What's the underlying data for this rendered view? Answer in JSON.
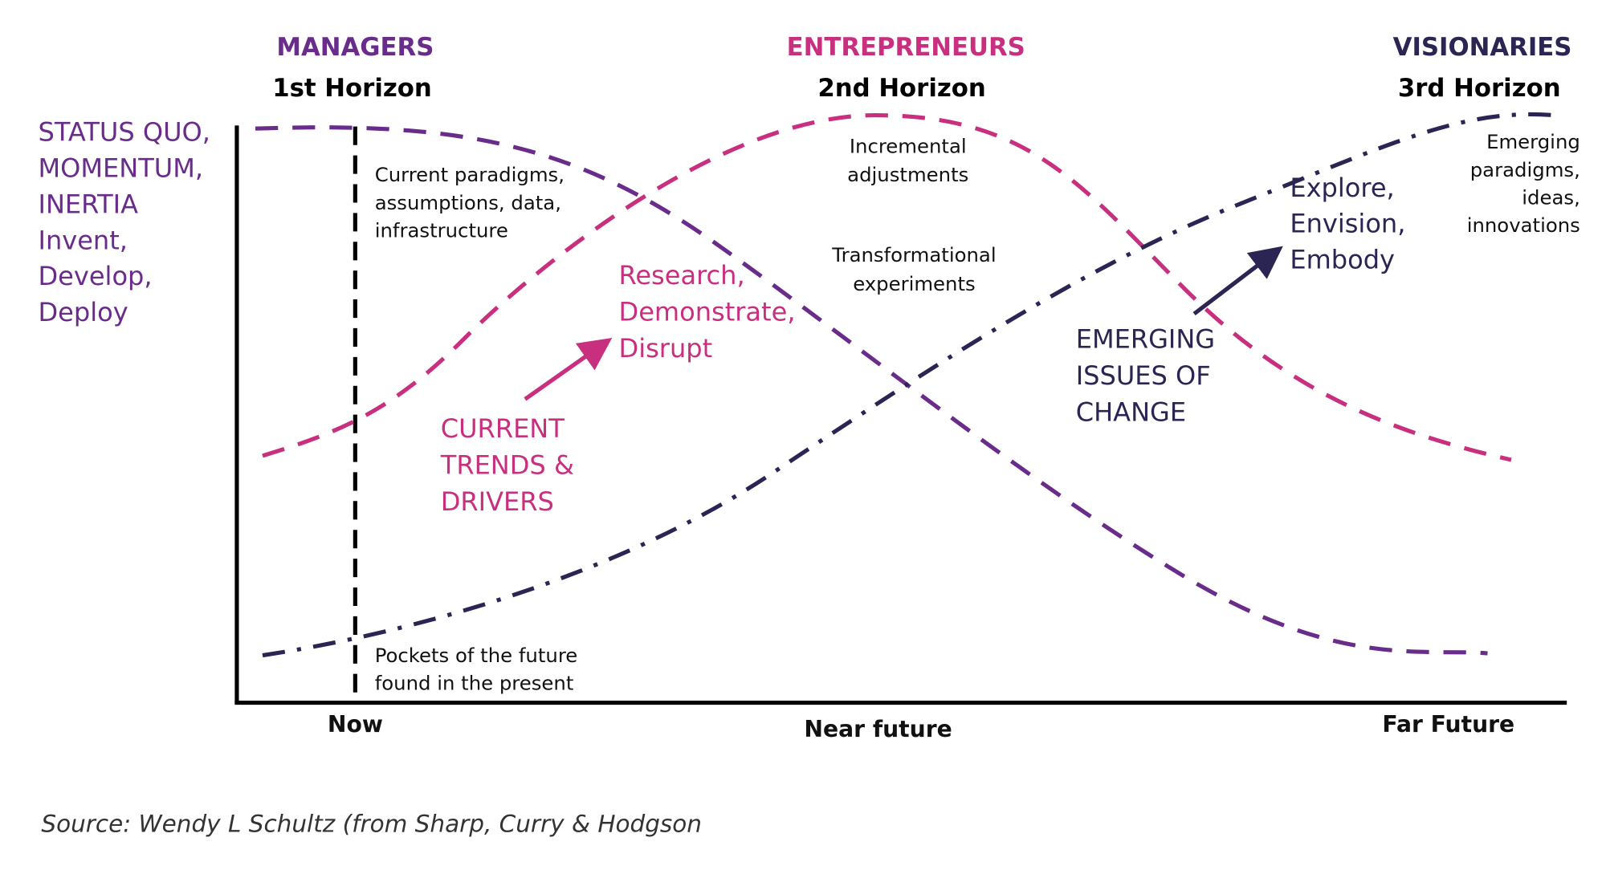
{
  "header": {
    "columns": [
      {
        "role": "MANAGERS",
        "horizon": "1st Horizon"
      },
      {
        "role": "ENTREPRENEURS",
        "horizon": "2nd Horizon"
      },
      {
        "role": "VISIONARIES",
        "horizon": "3rd Horizon"
      }
    ]
  },
  "left_label": [
    "STATUS QUO,",
    "MOMENTUM,",
    "INERTIA",
    "Invent,",
    "Develop,",
    "Deploy"
  ],
  "notes": {
    "current_paradigms": [
      "Current paradigms,",
      "assumptions, data,",
      "infrastructure"
    ],
    "incremental": [
      "Incremental",
      "adjustments"
    ],
    "transformational": [
      "Transformational",
      "experiments"
    ],
    "emerging_paradigms": [
      "Emerging",
      "paradigms,",
      "ideas,",
      "innovations"
    ],
    "research": [
      "Research,",
      "Demonstrate,",
      "Disrupt"
    ],
    "trends": [
      "CURRENT",
      "TRENDS &",
      "DRIVERS"
    ],
    "issues": [
      "EMERGING",
      "ISSUES OF",
      "CHANGE"
    ],
    "explore": [
      "Explore,",
      "Envision,",
      "Embody"
    ],
    "pockets": [
      "Pockets of the future",
      "found in the present"
    ]
  },
  "axis": {
    "labels": [
      "Now",
      "Near future",
      "Far Future"
    ]
  },
  "source": "Source: Wendy L Schultz (from Sharp, Curry & Hodgson"
}
